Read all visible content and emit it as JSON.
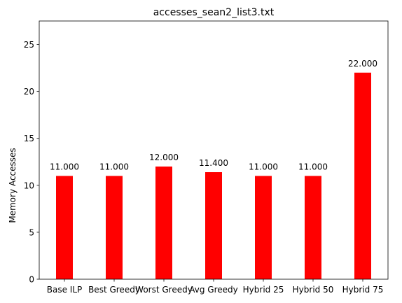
{
  "chart_data": {
    "type": "bar",
    "title": "accesses_sean2_list3.txt",
    "xlabel": "",
    "ylabel": "Memory Accesses",
    "categories": [
      "Base ILP",
      "Best Greedy",
      "Worst Greedy",
      "Avg Greedy",
      "Hybrid 25",
      "Hybrid 50",
      "Hybrid 75"
    ],
    "values": [
      11.0,
      11.0,
      12.0,
      11.4,
      11.0,
      11.0,
      22.0
    ],
    "data_labels": [
      "11.000",
      "11.000",
      "12.000",
      "11.400",
      "11.000",
      "11.000",
      "22.000"
    ],
    "yticks": [
      0,
      5,
      10,
      15,
      20,
      25
    ],
    "ylim": [
      0,
      27.5
    ],
    "grid": false,
    "bar_color": "#ff0000"
  }
}
